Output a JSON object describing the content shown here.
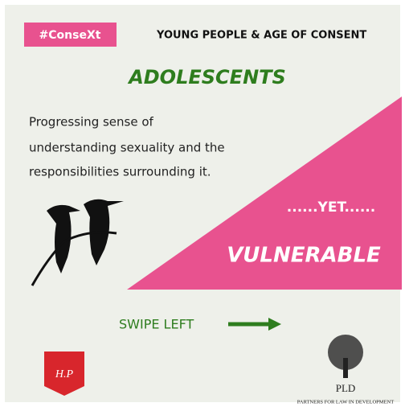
{
  "header": {
    "tag": "#ConseXt",
    "title": "YOUNG PEOPLE & AGE OF CONSENT"
  },
  "heading": "ADOLESCENTS",
  "description": {
    "lines": [
      "Progressing sense of",
      "understanding sexuality and the",
      "responsibilities surrounding it."
    ]
  },
  "callout": {
    "connector": "......YET......",
    "word": "VULNERABLE"
  },
  "navigation": {
    "label": "SWIPE LEFT"
  },
  "logos": {
    "left": "H.P",
    "right": {
      "acronym": "PLD",
      "full_name": "PARTNERS FOR LAW IN DEVELOPMENT"
    }
  }
}
